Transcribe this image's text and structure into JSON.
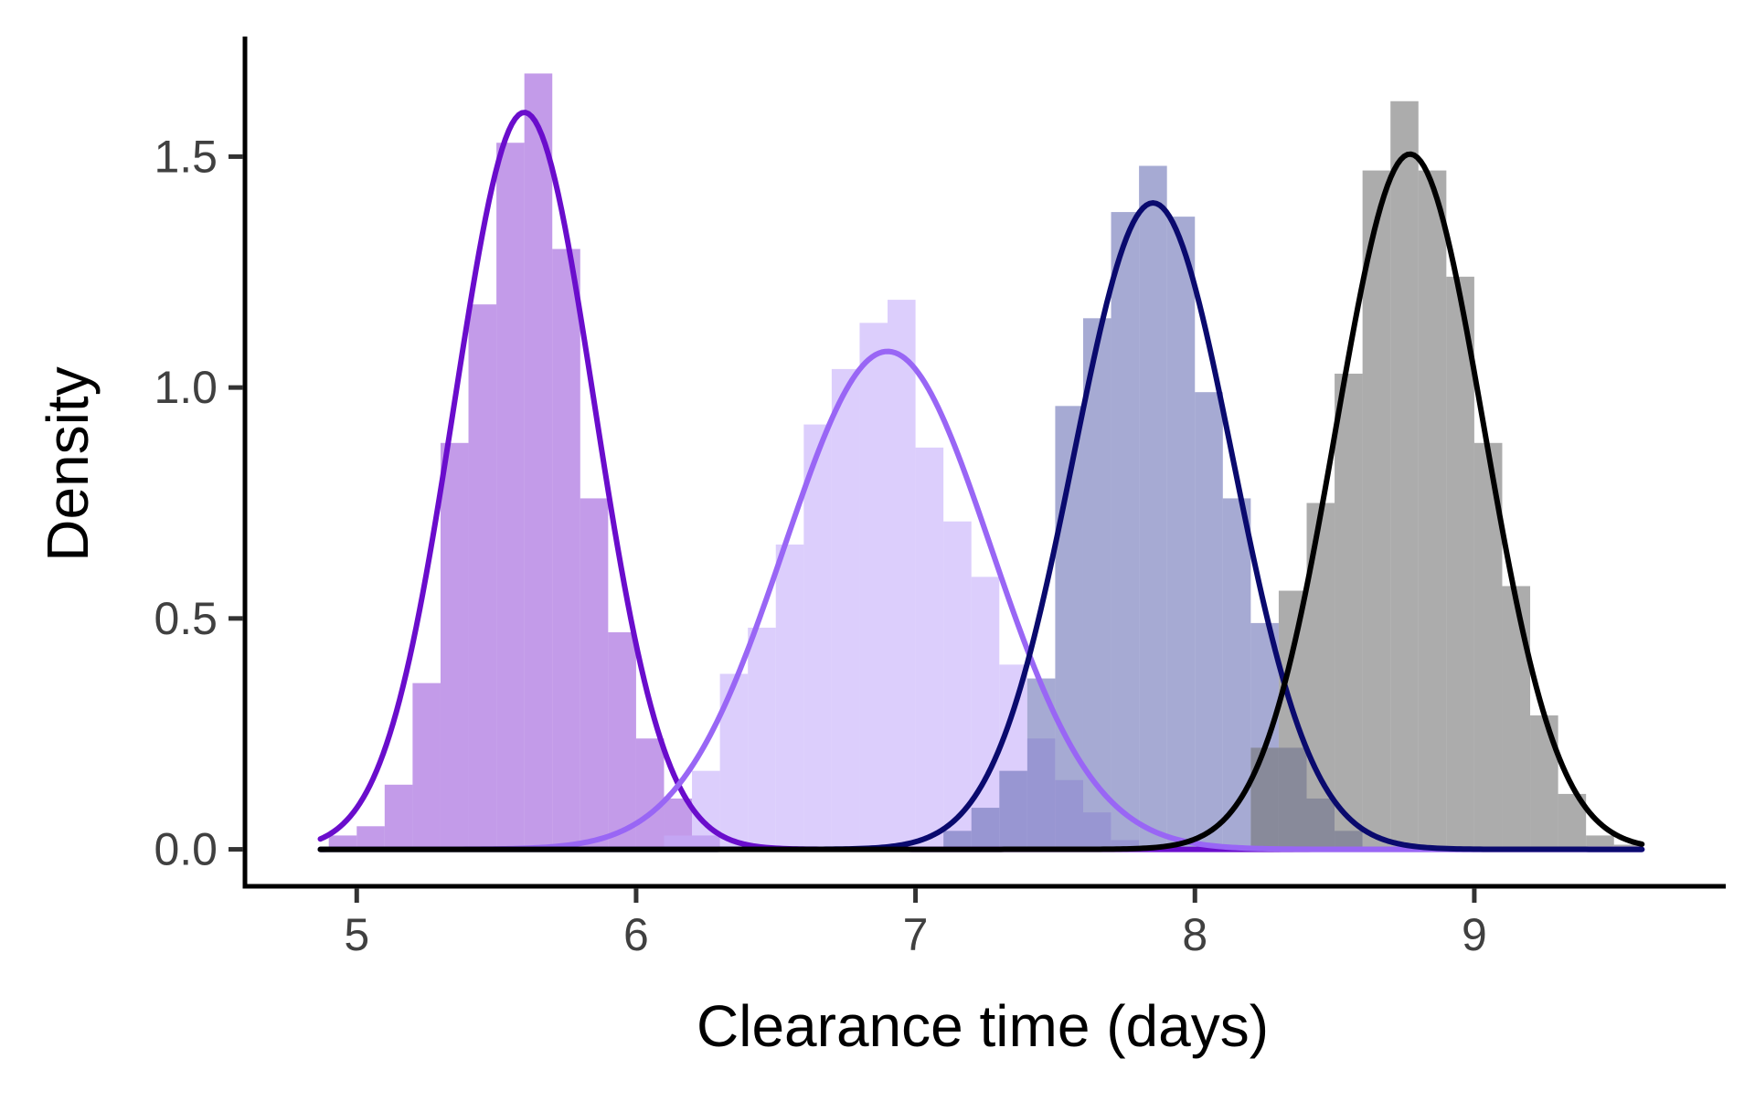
{
  "chart_data": {
    "type": "bar",
    "title": "",
    "xlabel": "Clearance time (days)",
    "ylabel": "Density",
    "xlim": [
      4.6,
      9.9
    ],
    "ylim": [
      -0.08,
      1.76
    ],
    "x_ticks": [
      {
        "value": 5,
        "label": "5"
      },
      {
        "value": 6,
        "label": "6"
      },
      {
        "value": 7,
        "label": "7"
      },
      {
        "value": 8,
        "label": "8"
      },
      {
        "value": 9,
        "label": "9"
      }
    ],
    "y_ticks": [
      {
        "value": 0.0,
        "label": "0.0"
      },
      {
        "value": 0.5,
        "label": "0.5"
      },
      {
        "value": 1.0,
        "label": "1.0"
      },
      {
        "value": 1.5,
        "label": "1.5"
      }
    ],
    "grid": false,
    "legend": "none",
    "bin_width": 0.1,
    "series": [
      {
        "fill_color": "#9B59DB",
        "line_color": "#6A0DCC",
        "bins": [
          {
            "x": 4.9,
            "density": 0.03
          },
          {
            "x": 5.0,
            "density": 0.05
          },
          {
            "x": 5.1,
            "density": 0.14
          },
          {
            "x": 5.2,
            "density": 0.36
          },
          {
            "x": 5.3,
            "density": 0.88
          },
          {
            "x": 5.4,
            "density": 1.18
          },
          {
            "x": 5.5,
            "density": 1.53
          },
          {
            "x": 5.6,
            "density": 1.68
          },
          {
            "x": 5.7,
            "density": 1.3
          },
          {
            "x": 5.8,
            "density": 0.76
          },
          {
            "x": 5.9,
            "density": 0.47
          },
          {
            "x": 6.0,
            "density": 0.24
          },
          {
            "x": 6.1,
            "density": 0.11
          },
          {
            "x": 6.2,
            "density": 0.03
          }
        ],
        "curve": {
          "mean": 5.6,
          "sd": 0.25
        }
      },
      {
        "fill_color": "#C4AEFA",
        "line_color": "#9966F5",
        "bins": [
          {
            "x": 6.1,
            "density": 0.03
          },
          {
            "x": 6.2,
            "density": 0.17
          },
          {
            "x": 6.3,
            "density": 0.38
          },
          {
            "x": 6.4,
            "density": 0.48
          },
          {
            "x": 6.5,
            "density": 0.66
          },
          {
            "x": 6.6,
            "density": 0.92
          },
          {
            "x": 6.7,
            "density": 1.04
          },
          {
            "x": 6.8,
            "density": 1.14
          },
          {
            "x": 6.9,
            "density": 1.19
          },
          {
            "x": 7.0,
            "density": 0.87
          },
          {
            "x": 7.1,
            "density": 0.71
          },
          {
            "x": 7.2,
            "density": 0.59
          },
          {
            "x": 7.3,
            "density": 0.4
          },
          {
            "x": 7.4,
            "density": 0.24
          },
          {
            "x": 7.5,
            "density": 0.15
          },
          {
            "x": 7.6,
            "density": 0.08
          },
          {
            "x": 7.7,
            "density": 0.02
          }
        ],
        "curve": {
          "mean": 6.9,
          "sd": 0.37
        }
      },
      {
        "fill_color": "#6B72B5",
        "line_color": "#0A0A6E",
        "bins": [
          {
            "x": 7.1,
            "density": 0.04
          },
          {
            "x": 7.2,
            "density": 0.09
          },
          {
            "x": 7.3,
            "density": 0.17
          },
          {
            "x": 7.4,
            "density": 0.37
          },
          {
            "x": 7.5,
            "density": 0.96
          },
          {
            "x": 7.6,
            "density": 1.15
          },
          {
            "x": 7.7,
            "density": 1.38
          },
          {
            "x": 7.8,
            "density": 1.48
          },
          {
            "x": 7.9,
            "density": 1.37
          },
          {
            "x": 8.0,
            "density": 0.99
          },
          {
            "x": 8.1,
            "density": 0.76
          },
          {
            "x": 8.2,
            "density": 0.49
          },
          {
            "x": 8.3,
            "density": 0.22
          },
          {
            "x": 8.4,
            "density": 0.11
          },
          {
            "x": 8.5,
            "density": 0.04
          }
        ],
        "curve": {
          "mean": 7.85,
          "sd": 0.285
        }
      },
      {
        "fill_color": "#747474",
        "line_color": "#000000",
        "bins": [
          {
            "x": 8.2,
            "density": 0.22
          },
          {
            "x": 8.3,
            "density": 0.56
          },
          {
            "x": 8.4,
            "density": 0.75
          },
          {
            "x": 8.5,
            "density": 1.03
          },
          {
            "x": 8.6,
            "density": 1.47
          },
          {
            "x": 8.7,
            "density": 1.62
          },
          {
            "x": 8.8,
            "density": 1.47
          },
          {
            "x": 8.9,
            "density": 1.24
          },
          {
            "x": 9.0,
            "density": 0.88
          },
          {
            "x": 9.1,
            "density": 0.57
          },
          {
            "x": 9.2,
            "density": 0.29
          },
          {
            "x": 9.3,
            "density": 0.12
          },
          {
            "x": 9.4,
            "density": 0.03
          },
          {
            "x": 9.5,
            "density": 0.01
          }
        ],
        "curve": {
          "mean": 8.77,
          "sd": 0.265
        }
      }
    ]
  }
}
